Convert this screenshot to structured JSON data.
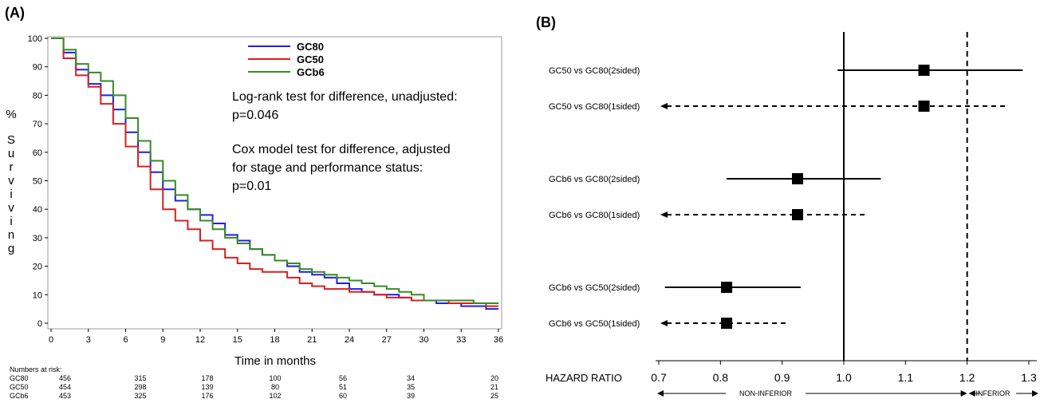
{
  "chart_data": [
    {
      "panel_label": "(A)",
      "type": "line",
      "xlabel": "Time in months",
      "ylabel_parts": [
        "%",
        "S",
        "u",
        "r",
        "v",
        "i",
        "v",
        "i",
        "n",
        "g"
      ],
      "xlim": [
        0,
        36
      ],
      "ylim": [
        0,
        100
      ],
      "xticks": [
        "0",
        "3",
        "6",
        "9",
        "12",
        "15",
        "18",
        "21",
        "24",
        "27",
        "30",
        "33",
        "36"
      ],
      "yticks": [
        "0",
        "10",
        "20",
        "30",
        "40",
        "50",
        "60",
        "70",
        "80",
        "90",
        "100"
      ],
      "legend_position": "top-center",
      "series": [
        {
          "name": "GC80",
          "color": "#1f1fe6",
          "x": [
            0,
            1,
            2,
            3,
            4,
            5,
            6,
            7,
            8,
            9,
            10,
            11,
            12,
            13,
            14,
            15,
            16,
            17,
            18,
            19,
            20,
            21,
            22,
            23,
            24,
            25,
            26,
            27,
            28,
            29,
            30,
            31,
            32,
            33,
            34,
            35,
            36
          ],
          "y": [
            100,
            95,
            89,
            84,
            80,
            75,
            67,
            60,
            53,
            47,
            43,
            40,
            38,
            35,
            31,
            29,
            26,
            24,
            22,
            20,
            18,
            17,
            16,
            14,
            12,
            11,
            10,
            10,
            9,
            8,
            8,
            7,
            7,
            6,
            6,
            5,
            5
          ]
        },
        {
          "name": "GC50",
          "color": "#d62020",
          "x": [
            0,
            1,
            2,
            3,
            4,
            5,
            6,
            7,
            8,
            9,
            10,
            11,
            12,
            13,
            14,
            15,
            16,
            17,
            18,
            19,
            20,
            21,
            22,
            23,
            24,
            25,
            26,
            27,
            28,
            29,
            30,
            31,
            32,
            33,
            34,
            35,
            36
          ],
          "y": [
            100,
            93,
            87,
            83,
            77,
            70,
            62,
            55,
            47,
            40,
            36,
            33,
            29,
            26,
            23,
            21,
            19,
            18,
            18,
            16,
            14,
            13,
            12,
            12,
            11,
            11,
            10,
            9,
            9,
            8,
            8,
            8,
            7,
            7,
            7,
            6,
            6
          ]
        },
        {
          "name": "GCb6",
          "color": "#3a8a25",
          "x": [
            0,
            1,
            2,
            3,
            4,
            5,
            6,
            7,
            8,
            9,
            10,
            11,
            12,
            13,
            14,
            15,
            16,
            17,
            18,
            19,
            20,
            21,
            22,
            23,
            24,
            25,
            26,
            27,
            28,
            29,
            30,
            31,
            32,
            33,
            34,
            35,
            36
          ],
          "y": [
            100,
            96,
            91,
            88,
            85,
            80,
            72,
            64,
            57,
            50,
            45,
            40,
            36,
            33,
            30,
            28,
            26,
            24,
            22,
            21,
            19,
            18,
            17,
            16,
            15,
            14,
            13,
            12,
            11,
            10,
            8,
            8,
            8,
            8,
            7,
            7,
            7
          ]
        }
      ],
      "annotations": [
        "Log-rank test for difference, unadjusted:",
        "p=0.046",
        "Cox model test for difference, adjusted",
        "for stage and performance status:",
        "p=0.01"
      ],
      "risk_table": {
        "title": "Numbers at risk:",
        "rows": [
          {
            "label": "GC80",
            "values": [
              "456",
              "315",
              "178",
              "100",
              "56",
              "34",
              "20"
            ]
          },
          {
            "label": "GC50",
            "values": [
              "454",
              "298",
              "139",
              "80",
              "51",
              "35",
              "21"
            ]
          },
          {
            "label": "GCb6",
            "values": [
              "453",
              "325",
              "176",
              "102",
              "60",
              "39",
              "25"
            ]
          }
        ]
      }
    },
    {
      "panel_label": "(B)",
      "type": "scatter",
      "subtype": "forest",
      "xlabel": "HAZARD RATIO",
      "xlim": [
        0.7,
        1.3
      ],
      "xticks": [
        "0.7",
        "0.8",
        "0.9",
        "1.0",
        "1.1",
        "1.2",
        "1.3"
      ],
      "reference_lines": [
        {
          "x": 1.0,
          "style": "solid"
        },
        {
          "x": 1.2,
          "style": "dashed"
        }
      ],
      "direction_labels": {
        "left": "NON-INFERIOR",
        "right": "INFERIOR"
      },
      "rows": [
        {
          "label": "GC50 vs GC80(2sided)",
          "estimate": 1.13,
          "lower": 0.99,
          "upper": 1.29,
          "line": "solid"
        },
        {
          "label": "GC50 vs GC80(1sided)",
          "estimate": 1.13,
          "lower": null,
          "upper": 1.265,
          "line": "dashed"
        },
        {
          "label": "GCb6 vs GC80(2sided)",
          "estimate": 0.925,
          "lower": 0.81,
          "upper": 1.06,
          "line": "solid"
        },
        {
          "label": "GCb6 vs GC80(1sided)",
          "estimate": 0.925,
          "lower": null,
          "upper": 1.035,
          "line": "dashed"
        },
        {
          "label": "GCb6 vs GC50(2sided)",
          "estimate": 0.81,
          "lower": 0.71,
          "upper": 0.93,
          "line": "solid"
        },
        {
          "label": "GCb6 vs GC50(1sided)",
          "estimate": 0.81,
          "lower": null,
          "upper": 0.91,
          "line": "dashed"
        }
      ]
    }
  ]
}
